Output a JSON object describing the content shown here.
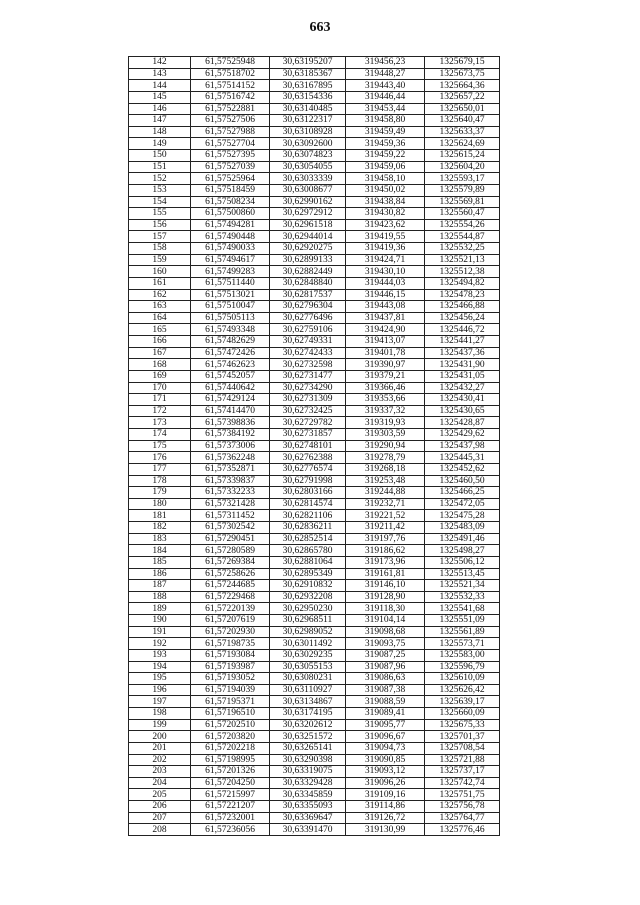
{
  "page_number": "663",
  "rows": [
    [
      "142",
      "61,57525948",
      "30,63195207",
      "319456,23",
      "1325679,15"
    ],
    [
      "143",
      "61,57518702",
      "30,63185367",
      "319448,27",
      "1325673,75"
    ],
    [
      "144",
      "61,57514152",
      "30,63167895",
      "319443,40",
      "1325664,36"
    ],
    [
      "145",
      "61,57516742",
      "30,63154336",
      "319446,44",
      "1325657,22"
    ],
    [
      "146",
      "61,57522881",
      "30,63140485",
      "319453,44",
      "1325650,01"
    ],
    [
      "147",
      "61,57527506",
      "30,63122317",
      "319458,80",
      "1325640,47"
    ],
    [
      "148",
      "61,57527988",
      "30,63108928",
      "319459,49",
      "1325633,37"
    ],
    [
      "149",
      "61,57527704",
      "30,63092600",
      "319459,36",
      "1325624,69"
    ],
    [
      "150",
      "61,57527395",
      "30,63074823",
      "319459,22",
      "1325615,24"
    ],
    [
      "151",
      "61,57527039",
      "30,63054055",
      "319459,06",
      "1325604,20"
    ],
    [
      "152",
      "61,57525964",
      "30,63033339",
      "319458,10",
      "1325593,17"
    ],
    [
      "153",
      "61,57518459",
      "30,63008677",
      "319450,02",
      "1325579,89"
    ],
    [
      "154",
      "61,57508234",
      "30,62990162",
      "319438,84",
      "1325569,81"
    ],
    [
      "155",
      "61,57500860",
      "30,62972912",
      "319430,82",
      "1325560,47"
    ],
    [
      "156",
      "61,57494281",
      "30,62961518",
      "319423,62",
      "1325554,26"
    ],
    [
      "157",
      "61,57490448",
      "30,62944014",
      "319419,55",
      "1325544,87"
    ],
    [
      "158",
      "61,57490033",
      "30,62920275",
      "319419,36",
      "1325532,25"
    ],
    [
      "159",
      "61,57494617",
      "30,62899133",
      "319424,71",
      "1325521,13"
    ],
    [
      "160",
      "61,57499283",
      "30,62882449",
      "319430,10",
      "1325512,38"
    ],
    [
      "161",
      "61,57511440",
      "30,62848840",
      "319444,03",
      "1325494,82"
    ],
    [
      "162",
      "61,57513021",
      "30,62817537",
      "319446,15",
      "1325478,23"
    ],
    [
      "163",
      "61,57510047",
      "30,62796304",
      "319443,08",
      "1325466,88"
    ],
    [
      "164",
      "61,57505113",
      "30,62776496",
      "319437,81",
      "1325456,24"
    ],
    [
      "165",
      "61,57493348",
      "30,62759106",
      "319424,90",
      "1325446,72"
    ],
    [
      "166",
      "61,57482629",
      "30,62749331",
      "319413,07",
      "1325441,27"
    ],
    [
      "167",
      "61,57472426",
      "30,62742433",
      "319401,78",
      "1325437,36"
    ],
    [
      "168",
      "61,57462623",
      "30,62732598",
      "319390,97",
      "1325431,90"
    ],
    [
      "169",
      "61,57452057",
      "30,62731477",
      "319379,21",
      "1325431,05"
    ],
    [
      "170",
      "61,57440642",
      "30,62734290",
      "319366,46",
      "1325432,27"
    ],
    [
      "171",
      "61,57429124",
      "30,62731309",
      "319353,66",
      "1325430,41"
    ],
    [
      "172",
      "61,57414470",
      "30,62732425",
      "319337,32",
      "1325430,65"
    ],
    [
      "173",
      "61,57398836",
      "30,62729782",
      "319319,93",
      "1325428,87"
    ],
    [
      "174",
      "61,57384192",
      "30,62731857",
      "319303,59",
      "1325429,62"
    ],
    [
      "175",
      "61,57373006",
      "30,62748101",
      "319290,94",
      "1325437,98"
    ],
    [
      "176",
      "61,57362248",
      "30,62762388",
      "319278,79",
      "1325445,31"
    ],
    [
      "177",
      "61,57352871",
      "30,62776574",
      "319268,18",
      "1325452,62"
    ],
    [
      "178",
      "61,57339837",
      "30,62791998",
      "319253,48",
      "1325460,50"
    ],
    [
      "179",
      "61,57332233",
      "30,62803166",
      "319244,88",
      "1325466,25"
    ],
    [
      "180",
      "61,57321428",
      "30,62814574",
      "319232,71",
      "1325472,05"
    ],
    [
      "181",
      "61,57311452",
      "30,62821106",
      "319221,52",
      "1325475,28"
    ],
    [
      "182",
      "61,57302542",
      "30,62836211",
      "319211,42",
      "1325483,09"
    ],
    [
      "183",
      "61,57290451",
      "30,62852514",
      "319197,76",
      "1325491,46"
    ],
    [
      "184",
      "61,57280589",
      "30,62865780",
      "319186,62",
      "1325498,27"
    ],
    [
      "185",
      "61,57269384",
      "30,62881064",
      "319173,96",
      "1325506,12"
    ],
    [
      "186",
      "61,57258626",
      "30,62895349",
      "319161,81",
      "1325513,45"
    ],
    [
      "187",
      "61,57244685",
      "30,62910832",
      "319146,10",
      "1325521,34"
    ],
    [
      "188",
      "61,57229468",
      "30,62932208",
      "319128,90",
      "1325532,33"
    ],
    [
      "189",
      "61,57220139",
      "30,62950230",
      "319118,30",
      "1325541,68"
    ],
    [
      "190",
      "61,57207619",
      "30,62968511",
      "319104,14",
      "1325551,09"
    ],
    [
      "191",
      "61,57202930",
      "30,62989052",
      "319098,68",
      "1325561,89"
    ],
    [
      "192",
      "61,57198735",
      "30,63011492",
      "319093,75",
      "1325573,71"
    ],
    [
      "193",
      "61,57193084",
      "30,63029235",
      "319087,25",
      "1325583,00"
    ],
    [
      "194",
      "61,57193987",
      "30,63055153",
      "319087,96",
      "1325596,79"
    ],
    [
      "195",
      "61,57193052",
      "30,63080231",
      "319086,63",
      "1325610,09"
    ],
    [
      "196",
      "61,57194039",
      "30,63110927",
      "319087,38",
      "1325626,42"
    ],
    [
      "197",
      "61,57195371",
      "30,63134867",
      "319088,59",
      "1325639,17"
    ],
    [
      "198",
      "61,57196510",
      "30,63174195",
      "319089,41",
      "1325660,09"
    ],
    [
      "199",
      "61,57202510",
      "30,63202612",
      "319095,77",
      "1325675,33"
    ],
    [
      "200",
      "61,57203820",
      "30,63251572",
      "319096,67",
      "1325701,37"
    ],
    [
      "201",
      "61,57202218",
      "30,63265141",
      "319094,73",
      "1325708,54"
    ],
    [
      "202",
      "61,57198995",
      "30,63290398",
      "319090,85",
      "1325721,88"
    ],
    [
      "203",
      "61,57201326",
      "30,63319075",
      "319093,12",
      "1325737,17"
    ],
    [
      "204",
      "61,57204250",
      "30,63329428",
      "319096,26",
      "1325742,74"
    ],
    [
      "205",
      "61,57215997",
      "30,63345859",
      "319109,16",
      "1325751,75"
    ],
    [
      "206",
      "61,57221207",
      "30,63355093",
      "319114,86",
      "1325756,78"
    ],
    [
      "207",
      "61,57232001",
      "30,63369647",
      "319126,72",
      "1325764,77"
    ],
    [
      "208",
      "61,57236056",
      "30,63391470",
      "319130,99",
      "1325776,46"
    ]
  ]
}
